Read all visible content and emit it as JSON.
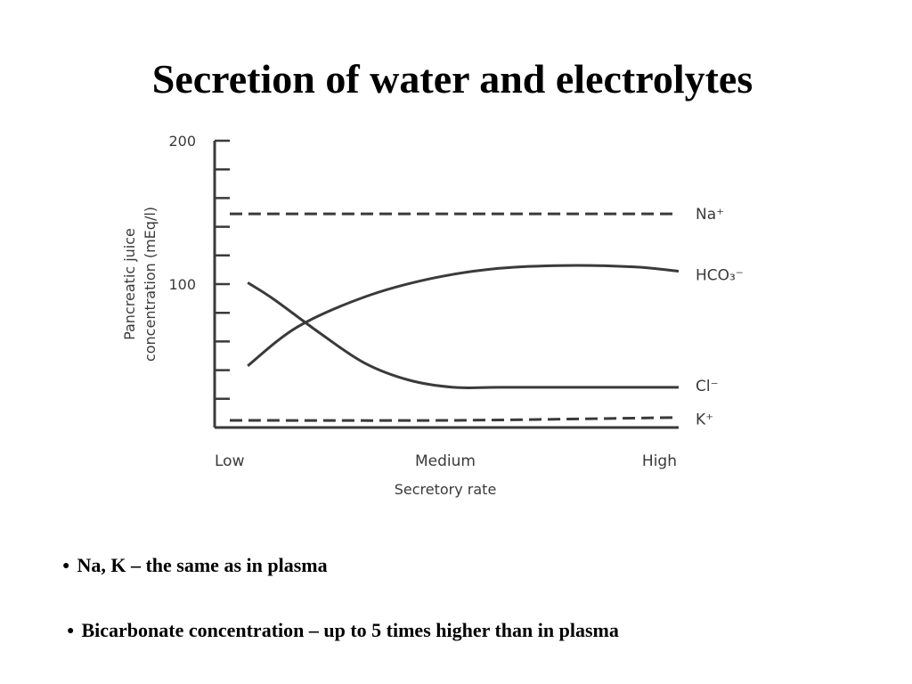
{
  "slide": {
    "title": "Secretion of water and electrolytes",
    "bullets": [
      "Na, K – the same as in plasma",
      "Bicarbonate concentration – up to 5 times higher than in plasma"
    ]
  },
  "chart_data": {
    "type": "line",
    "title": "",
    "xlabel": "Secretory rate",
    "ylabel_lines": [
      "Pancreatic juice",
      "concentration (mEq/l)"
    ],
    "categories": [
      "Low",
      "Medium",
      "High"
    ],
    "xlim": [
      0,
      1
    ],
    "ylim": [
      0,
      200
    ],
    "yticks": [
      0,
      20,
      40,
      60,
      80,
      100,
      120,
      140,
      160,
      180,
      200
    ],
    "ytick_labels": [
      {
        "value": 100,
        "label": "100"
      },
      {
        "value": 200,
        "label": "200"
      }
    ],
    "grid": false,
    "legend": "right-end labels",
    "series": [
      {
        "name": "Na⁺",
        "style": "dashed",
        "x": [
          0,
          0.5,
          1
        ],
        "y": [
          149,
          149,
          149
        ]
      },
      {
        "name": "HCO₃⁻",
        "style": "solid",
        "x": [
          0.04,
          0.15,
          0.3,
          0.45,
          0.6,
          0.75,
          0.9,
          1.0
        ],
        "y": [
          43,
          70,
          91,
          104,
          111,
          113,
          112,
          109
        ]
      },
      {
        "name": "Cl⁻",
        "style": "solid",
        "x": [
          0.04,
          0.1,
          0.2,
          0.3,
          0.4,
          0.5,
          0.6,
          0.8,
          1.0
        ],
        "y": [
          101,
          89,
          66,
          45,
          33,
          28,
          28,
          28,
          28
        ]
      },
      {
        "name": "K⁺",
        "style": "dashed",
        "x": [
          0,
          0.5,
          1
        ],
        "y": [
          5,
          5,
          7
        ]
      }
    ]
  }
}
